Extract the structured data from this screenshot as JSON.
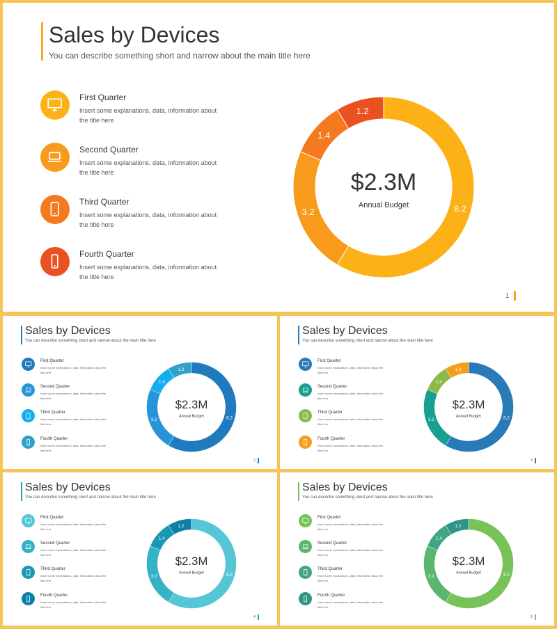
{
  "title": "Sales by Devices",
  "subtitle": "You can describe something short and narrow about the main title here",
  "center_value": "$2.3M",
  "center_label": "Annual Budget",
  "items": [
    {
      "title": "First Quarter",
      "desc": "Insert some explanations, data, information about the title here",
      "icon": "monitor-icon"
    },
    {
      "title": "Second Quarter",
      "desc": "Insert some explanations, data, information about the title here",
      "icon": "laptop-icon"
    },
    {
      "title": "Third Quarter",
      "desc": "Insert some explanations, data, information about the title here",
      "icon": "tablet-icon"
    },
    {
      "title": "Fourth Quarter",
      "desc": "Insert some explanations, data, information about the title here",
      "icon": "phone-icon"
    }
  ],
  "chart_data": {
    "type": "pie",
    "subtype": "donut",
    "categories": [
      "First Quarter",
      "Second Quarter",
      "Third Quarter",
      "Fourth Quarter"
    ],
    "values": [
      8.2,
      3.2,
      1.4,
      1.2
    ],
    "value_labels": [
      "8.2",
      "3.2",
      "1.4",
      "1.2"
    ],
    "title": "Sales by Devices",
    "center_text": "$2.3M",
    "center_subtext": "Annual Budget"
  },
  "slides": [
    {
      "page": "1",
      "accent": "#f6a623",
      "colors": [
        "#fcb117",
        "#f89b1d",
        "#f5791f",
        "#ea5120"
      ]
    },
    {
      "page": "2",
      "accent": "#2a7ab8",
      "colors": [
        "#1f7bbd",
        "#2694d6",
        "#13aef0",
        "#2ea3c9"
      ]
    },
    {
      "page": "3",
      "accent": "#2a7ab8",
      "colors": [
        "#2a7ab8",
        "#17a08e",
        "#8db94a",
        "#f59e1b"
      ]
    },
    {
      "page": "4",
      "accent": "#1aa5b8",
      "colors": [
        "#55c6d6",
        "#36b2c6",
        "#1a97b2",
        "#0e80a8"
      ]
    },
    {
      "page": "5",
      "accent": "#7cc05a",
      "colors": [
        "#78c25a",
        "#5cb56e",
        "#3fa585",
        "#2f9588"
      ]
    }
  ]
}
